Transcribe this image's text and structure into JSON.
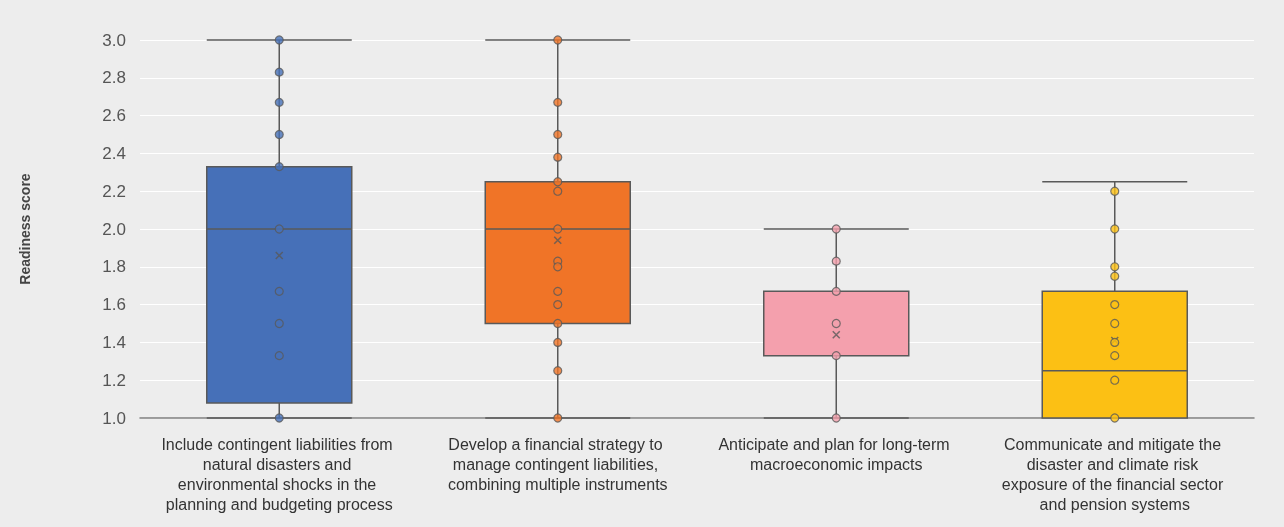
{
  "chart_data": {
    "type": "box",
    "ylabel": "Readiness score",
    "categories": [
      "Include contingent liabilities from natural disasters and environmental shocks in the planning and budgeting process",
      "Develop a financial strategy to manage contingent liabilities, combining multiple instruments",
      "Anticipate and plan for long-term macroeconomic impacts",
      "Communicate and mitigate the disaster and climate risk exposure of the financial sector and pension systems"
    ],
    "colors": [
      "#4670b8",
      "#f07427",
      "#f4a0ad",
      "#fcc014"
    ],
    "boxes": [
      {
        "low": 1.0,
        "q1": 1.08,
        "median": 2.0,
        "q3": 2.33,
        "high": 3.0,
        "mean": 1.86
      },
      {
        "low": 1.0,
        "q1": 1.5,
        "median": 2.0,
        "q3": 2.25,
        "high": 3.0,
        "mean": 1.94
      },
      {
        "low": 1.0,
        "q1": 1.33,
        "median": 1.33,
        "q3": 1.67,
        "high": 2.0,
        "mean": 1.44
      },
      {
        "low": 1.0,
        "q1": 1.0,
        "median": 1.25,
        "q3": 1.67,
        "high": 2.25,
        "mean": 1.41
      }
    ],
    "series": [
      {
        "type": "scatter",
        "color": "#4670b8",
        "x": [
          "Include contingent liabilities from natural disasters and environmental shocks in the planning and budgeting process",
          "Include contingent liabilities from natural disasters and environmental shocks in the planning and budgeting process",
          "Include contingent liabilities from natural disasters and environmental shocks in the planning and budgeting process",
          "Include contingent liabilities from natural disasters and environmental shocks in the planning and budgeting process",
          "Include contingent liabilities from natural disasters and environmental shocks in the planning and budgeting process",
          "Include contingent liabilities from natural disasters and environmental shocks in the planning and budgeting process",
          "Include contingent liabilities from natural disasters and environmental shocks in the planning and budgeting process",
          "Include contingent liabilities from natural disasters and environmental shocks in the planning and budgeting process",
          "Include contingent liabilities from natural disasters and environmental shocks in the planning and budgeting process",
          "Include contingent liabilities from natural disasters and environmental shocks in the planning and budgeting process"
        ],
        "values": [
          3.0,
          2.83,
          2.67,
          2.5,
          2.33,
          2.0,
          1.67,
          1.5,
          1.33,
          1.0
        ]
      },
      {
        "type": "scatter",
        "color": "#f07427",
        "x": [
          "Develop a financial strategy to manage contingent liabilities, combining multiple instruments",
          "Develop a financial strategy to manage contingent liabilities, combining multiple instruments",
          "Develop a financial strategy to manage contingent liabilities, combining multiple instruments",
          "Develop a financial strategy to manage contingent liabilities, combining multiple instruments",
          "Develop a financial strategy to manage contingent liabilities, combining multiple instruments",
          "Develop a financial strategy to manage contingent liabilities, combining multiple instruments",
          "Develop a financial strategy to manage contingent liabilities, combining multiple instruments",
          "Develop a financial strategy to manage contingent liabilities, combining multiple instruments",
          "Develop a financial strategy to manage contingent liabilities, combining multiple instruments",
          "Develop a financial strategy to manage contingent liabilities, combining multiple instruments",
          "Develop a financial strategy to manage contingent liabilities, combining multiple instruments",
          "Develop a financial strategy to manage contingent liabilities, combining multiple instruments",
          "Develop a financial strategy to manage contingent liabilities, combining multiple instruments",
          "Develop a financial strategy to manage contingent liabilities, combining multiple instruments",
          "Develop a financial strategy to manage contingent liabilities, combining multiple instruments"
        ],
        "values": [
          3.0,
          2.67,
          2.5,
          2.38,
          2.25,
          2.2,
          2.0,
          1.83,
          1.8,
          1.67,
          1.6,
          1.5,
          1.4,
          1.25,
          1.0
        ]
      },
      {
        "type": "scatter",
        "color": "#f4a0ad",
        "x": [
          "Anticipate and plan for long-term macroeconomic impacts",
          "Anticipate and plan for long-term macroeconomic impacts",
          "Anticipate and plan for long-term macroeconomic impacts",
          "Anticipate and plan for long-term macroeconomic impacts",
          "Anticipate and plan for long-term macroeconomic impacts",
          "Anticipate and plan for long-term macroeconomic impacts"
        ],
        "values": [
          2.0,
          1.83,
          1.67,
          1.5,
          1.33,
          1.0
        ]
      },
      {
        "type": "scatter",
        "color": "#fcc014",
        "x": [
          "Communicate and mitigate the disaster and climate risk exposure of the financial sector and pension systems",
          "Communicate and mitigate the disaster and climate risk exposure of the financial sector and pension systems",
          "Communicate and mitigate the disaster and climate risk exposure of the financial sector and pension systems",
          "Communicate and mitigate the disaster and climate risk exposure of the financial sector and pension systems",
          "Communicate and mitigate the disaster and climate risk exposure of the financial sector and pension systems",
          "Communicate and mitigate the disaster and climate risk exposure of the financial sector and pension systems",
          "Communicate and mitigate the disaster and climate risk exposure of the financial sector and pension systems",
          "Communicate and mitigate the disaster and climate risk exposure of the financial sector and pension systems",
          "Communicate and mitigate the disaster and climate risk exposure of the financial sector and pension systems",
          "Communicate and mitigate the disaster and climate risk exposure of the financial sector and pension systems"
        ],
        "values": [
          2.2,
          2.0,
          1.8,
          1.75,
          1.6,
          1.5,
          1.4,
          1.33,
          1.2,
          1.0
        ]
      }
    ],
    "ylim": [
      1.0,
      3.0
    ],
    "yticks": [
      {
        "value": 1.0,
        "label": "1.0"
      },
      {
        "value": 1.2,
        "label": "1.2"
      },
      {
        "value": 1.4,
        "label": "1.4"
      },
      {
        "value": 1.6,
        "label": "1.6"
      },
      {
        "value": 1.8,
        "label": "1.8"
      },
      {
        "value": 2.0,
        "label": "2.0"
      },
      {
        "value": 2.2,
        "label": "2.2"
      },
      {
        "value": 2.4,
        "label": "2.4"
      },
      {
        "value": 2.6,
        "label": "2.6"
      },
      {
        "value": 2.8,
        "label": "2.8"
      },
      {
        "value": 3.0,
        "label": "3.0"
      }
    ],
    "grid": "y",
    "legend": false,
    "marker": "circle"
  }
}
